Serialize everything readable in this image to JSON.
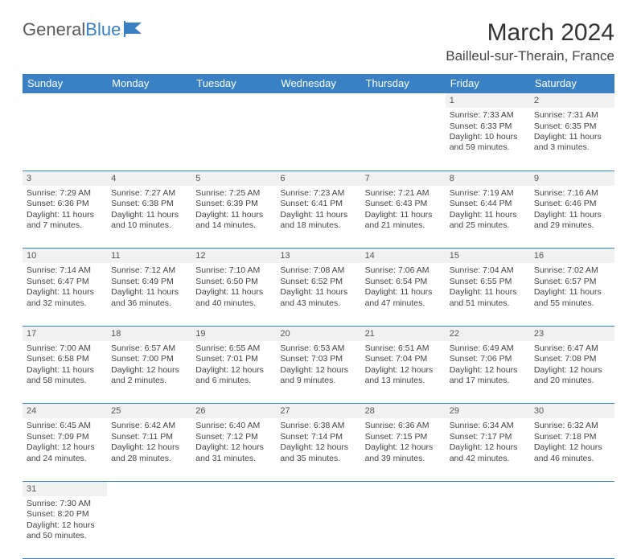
{
  "brand": {
    "part1": "General",
    "part2": "Blue"
  },
  "title": "March 2024",
  "location": "Bailleul-sur-Therain, France",
  "colors": {
    "header_bg": "#3a81c4",
    "header_fg": "#ffffff",
    "daynum_bg": "#f1f1f1",
    "rule": "#3a81c4",
    "text": "#444444",
    "brand_blue": "#3a7fbf"
  },
  "weekdays": [
    "Sunday",
    "Monday",
    "Tuesday",
    "Wednesday",
    "Thursday",
    "Friday",
    "Saturday"
  ],
  "weeks": [
    {
      "nums": [
        "",
        "",
        "",
        "",
        "",
        "1",
        "2"
      ],
      "cells": [
        null,
        null,
        null,
        null,
        null,
        {
          "sunrise": "Sunrise: 7:33 AM",
          "sunset": "Sunset: 6:33 PM",
          "day1": "Daylight: 10 hours",
          "day2": "and 59 minutes."
        },
        {
          "sunrise": "Sunrise: 7:31 AM",
          "sunset": "Sunset: 6:35 PM",
          "day1": "Daylight: 11 hours",
          "day2": "and 3 minutes."
        }
      ]
    },
    {
      "nums": [
        "3",
        "4",
        "5",
        "6",
        "7",
        "8",
        "9"
      ],
      "cells": [
        {
          "sunrise": "Sunrise: 7:29 AM",
          "sunset": "Sunset: 6:36 PM",
          "day1": "Daylight: 11 hours",
          "day2": "and 7 minutes."
        },
        {
          "sunrise": "Sunrise: 7:27 AM",
          "sunset": "Sunset: 6:38 PM",
          "day1": "Daylight: 11 hours",
          "day2": "and 10 minutes."
        },
        {
          "sunrise": "Sunrise: 7:25 AM",
          "sunset": "Sunset: 6:39 PM",
          "day1": "Daylight: 11 hours",
          "day2": "and 14 minutes."
        },
        {
          "sunrise": "Sunrise: 7:23 AM",
          "sunset": "Sunset: 6:41 PM",
          "day1": "Daylight: 11 hours",
          "day2": "and 18 minutes."
        },
        {
          "sunrise": "Sunrise: 7:21 AM",
          "sunset": "Sunset: 6:43 PM",
          "day1": "Daylight: 11 hours",
          "day2": "and 21 minutes."
        },
        {
          "sunrise": "Sunrise: 7:19 AM",
          "sunset": "Sunset: 6:44 PM",
          "day1": "Daylight: 11 hours",
          "day2": "and 25 minutes."
        },
        {
          "sunrise": "Sunrise: 7:16 AM",
          "sunset": "Sunset: 6:46 PM",
          "day1": "Daylight: 11 hours",
          "day2": "and 29 minutes."
        }
      ]
    },
    {
      "nums": [
        "10",
        "11",
        "12",
        "13",
        "14",
        "15",
        "16"
      ],
      "cells": [
        {
          "sunrise": "Sunrise: 7:14 AM",
          "sunset": "Sunset: 6:47 PM",
          "day1": "Daylight: 11 hours",
          "day2": "and 32 minutes."
        },
        {
          "sunrise": "Sunrise: 7:12 AM",
          "sunset": "Sunset: 6:49 PM",
          "day1": "Daylight: 11 hours",
          "day2": "and 36 minutes."
        },
        {
          "sunrise": "Sunrise: 7:10 AM",
          "sunset": "Sunset: 6:50 PM",
          "day1": "Daylight: 11 hours",
          "day2": "and 40 minutes."
        },
        {
          "sunrise": "Sunrise: 7:08 AM",
          "sunset": "Sunset: 6:52 PM",
          "day1": "Daylight: 11 hours",
          "day2": "and 43 minutes."
        },
        {
          "sunrise": "Sunrise: 7:06 AM",
          "sunset": "Sunset: 6:54 PM",
          "day1": "Daylight: 11 hours",
          "day2": "and 47 minutes."
        },
        {
          "sunrise": "Sunrise: 7:04 AM",
          "sunset": "Sunset: 6:55 PM",
          "day1": "Daylight: 11 hours",
          "day2": "and 51 minutes."
        },
        {
          "sunrise": "Sunrise: 7:02 AM",
          "sunset": "Sunset: 6:57 PM",
          "day1": "Daylight: 11 hours",
          "day2": "and 55 minutes."
        }
      ]
    },
    {
      "nums": [
        "17",
        "18",
        "19",
        "20",
        "21",
        "22",
        "23"
      ],
      "cells": [
        {
          "sunrise": "Sunrise: 7:00 AM",
          "sunset": "Sunset: 6:58 PM",
          "day1": "Daylight: 11 hours",
          "day2": "and 58 minutes."
        },
        {
          "sunrise": "Sunrise: 6:57 AM",
          "sunset": "Sunset: 7:00 PM",
          "day1": "Daylight: 12 hours",
          "day2": "and 2 minutes."
        },
        {
          "sunrise": "Sunrise: 6:55 AM",
          "sunset": "Sunset: 7:01 PM",
          "day1": "Daylight: 12 hours",
          "day2": "and 6 minutes."
        },
        {
          "sunrise": "Sunrise: 6:53 AM",
          "sunset": "Sunset: 7:03 PM",
          "day1": "Daylight: 12 hours",
          "day2": "and 9 minutes."
        },
        {
          "sunrise": "Sunrise: 6:51 AM",
          "sunset": "Sunset: 7:04 PM",
          "day1": "Daylight: 12 hours",
          "day2": "and 13 minutes."
        },
        {
          "sunrise": "Sunrise: 6:49 AM",
          "sunset": "Sunset: 7:06 PM",
          "day1": "Daylight: 12 hours",
          "day2": "and 17 minutes."
        },
        {
          "sunrise": "Sunrise: 6:47 AM",
          "sunset": "Sunset: 7:08 PM",
          "day1": "Daylight: 12 hours",
          "day2": "and 20 minutes."
        }
      ]
    },
    {
      "nums": [
        "24",
        "25",
        "26",
        "27",
        "28",
        "29",
        "30"
      ],
      "cells": [
        {
          "sunrise": "Sunrise: 6:45 AM",
          "sunset": "Sunset: 7:09 PM",
          "day1": "Daylight: 12 hours",
          "day2": "and 24 minutes."
        },
        {
          "sunrise": "Sunrise: 6:42 AM",
          "sunset": "Sunset: 7:11 PM",
          "day1": "Daylight: 12 hours",
          "day2": "and 28 minutes."
        },
        {
          "sunrise": "Sunrise: 6:40 AM",
          "sunset": "Sunset: 7:12 PM",
          "day1": "Daylight: 12 hours",
          "day2": "and 31 minutes."
        },
        {
          "sunrise": "Sunrise: 6:38 AM",
          "sunset": "Sunset: 7:14 PM",
          "day1": "Daylight: 12 hours",
          "day2": "and 35 minutes."
        },
        {
          "sunrise": "Sunrise: 6:36 AM",
          "sunset": "Sunset: 7:15 PM",
          "day1": "Daylight: 12 hours",
          "day2": "and 39 minutes."
        },
        {
          "sunrise": "Sunrise: 6:34 AM",
          "sunset": "Sunset: 7:17 PM",
          "day1": "Daylight: 12 hours",
          "day2": "and 42 minutes."
        },
        {
          "sunrise": "Sunrise: 6:32 AM",
          "sunset": "Sunset: 7:18 PM",
          "day1": "Daylight: 12 hours",
          "day2": "and 46 minutes."
        }
      ]
    },
    {
      "nums": [
        "31",
        "",
        "",
        "",
        "",
        "",
        ""
      ],
      "cells": [
        {
          "sunrise": "Sunrise: 7:30 AM",
          "sunset": "Sunset: 8:20 PM",
          "day1": "Daylight: 12 hours",
          "day2": "and 50 minutes."
        },
        null,
        null,
        null,
        null,
        null,
        null
      ]
    }
  ]
}
